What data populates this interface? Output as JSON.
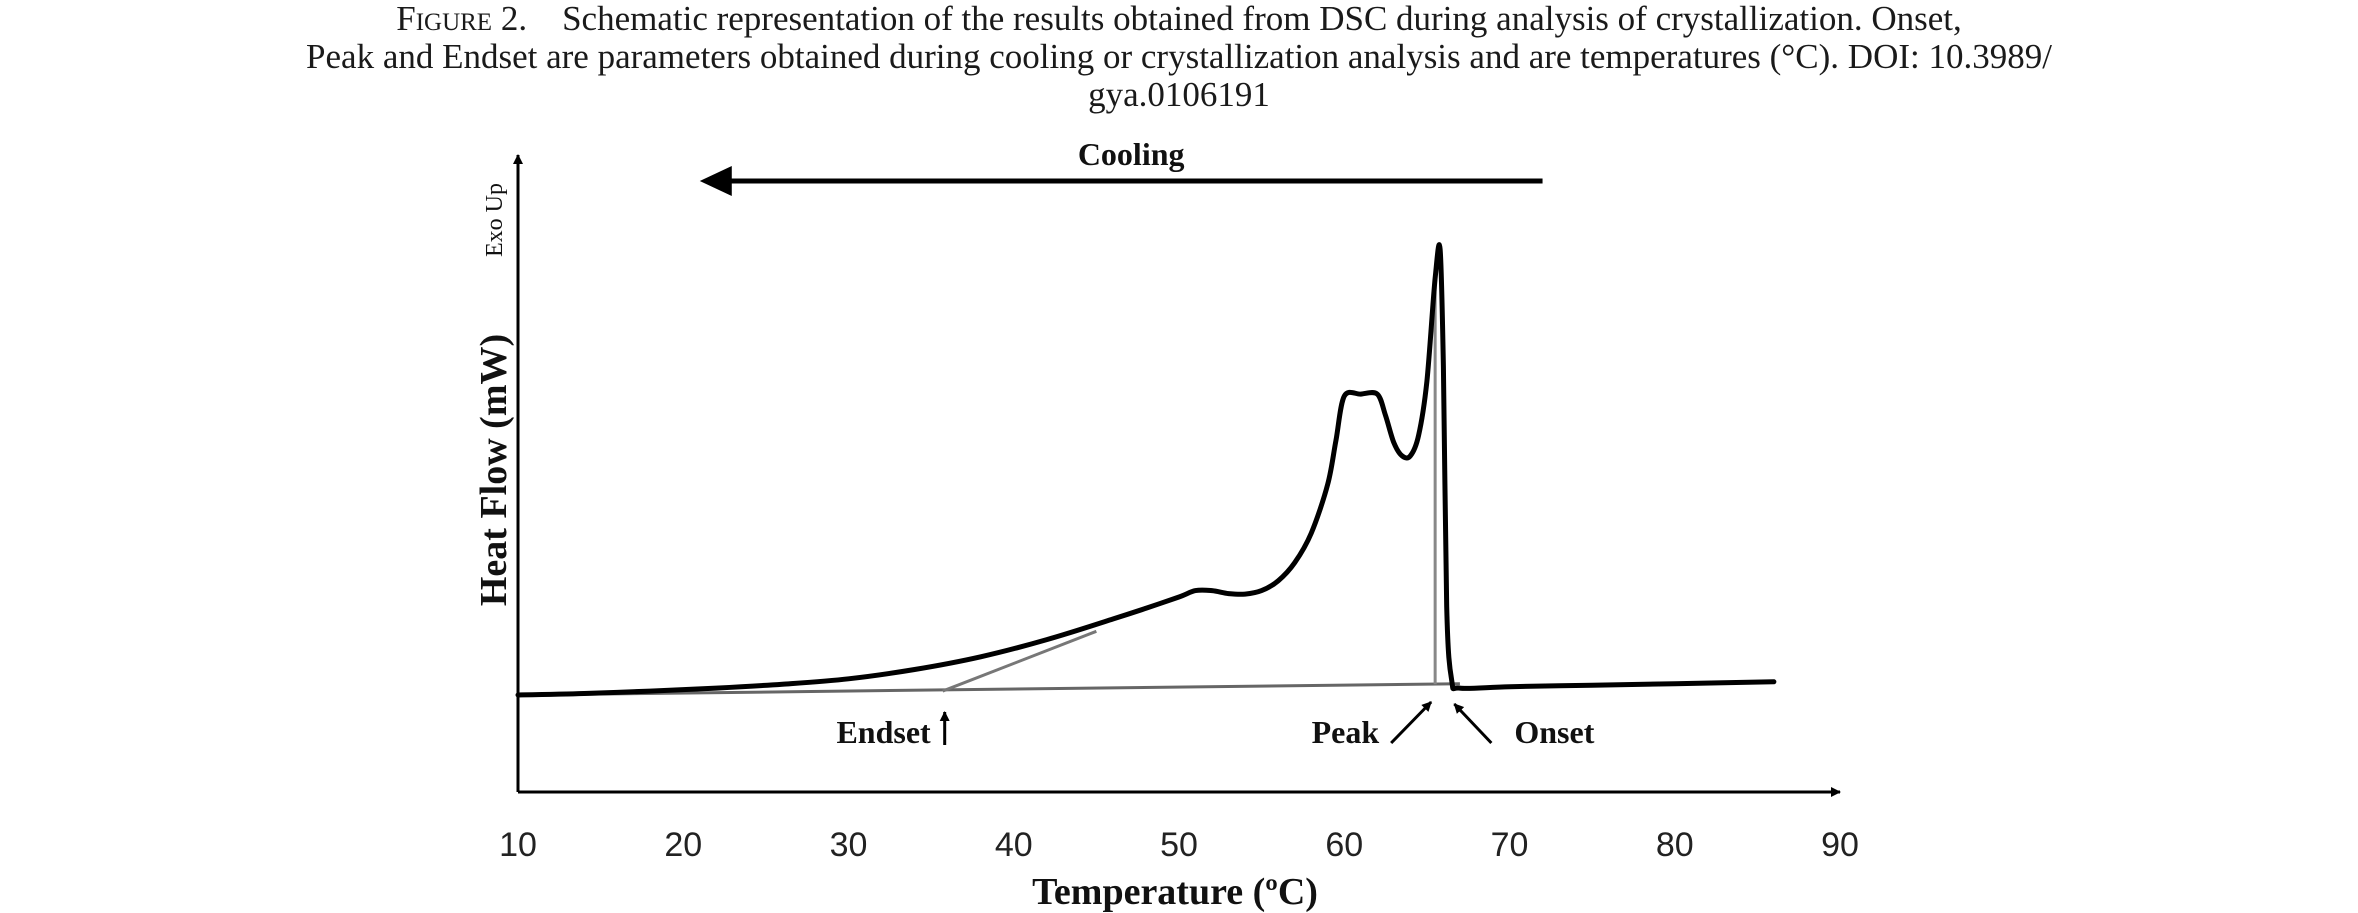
{
  "caption": {
    "figure_label": "Figure 2.",
    "text_line1": "Schematic representation of the results obtained from DSC during analysis of crystallization. Onset,",
    "text_line2": "Peak and Endset are parameters obtained during cooling or crystallization analysis and are temperatures (°C). DOI: 10.3989/",
    "text_line3": "gya.0106191"
  },
  "chart_data": {
    "type": "line",
    "title": "",
    "xlabel": "Temperature (ºC)",
    "ylabel": "Heat Flow (mW)",
    "y_direction_label": "Exo Up",
    "xlim": [
      10,
      90
    ],
    "x_ticks": [
      10,
      20,
      30,
      40,
      50,
      60,
      70,
      80,
      90
    ],
    "ylim": [
      0,
      100
    ],
    "y_ticks_shown": false,
    "grid": false,
    "legend": "none",
    "series": [
      {
        "x": [
          10,
          14,
          18,
          22,
          26,
          30,
          34,
          38,
          42,
          46,
          48,
          50,
          51,
          52,
          53,
          54,
          55,
          56,
          57,
          58,
          59,
          59.5,
          60,
          61,
          62,
          62.5,
          63,
          63.5,
          64,
          64.5,
          65,
          65.5,
          65.8,
          66,
          66.2,
          66.5,
          67,
          70,
          75,
          80,
          86
        ],
        "y": [
          0,
          0.3,
          0.8,
          1.4,
          2.2,
          3.3,
          5.2,
          7.8,
          11.3,
          15.5,
          17.7,
          20.0,
          21.3,
          21.3,
          20.7,
          20.6,
          21.3,
          23.3,
          27.0,
          33.0,
          43.0,
          52.0,
          61.0,
          61.4,
          61.4,
          57.0,
          51.5,
          48.8,
          48.8,
          53.0,
          64.0,
          85.0,
          91.0,
          67.0,
          18.0,
          3.0,
          1.4,
          1.7,
          2.0,
          2.3,
          2.7
        ]
      }
    ],
    "baseline": {
      "x": [
        10,
        67
      ],
      "y": [
        0,
        2.3
      ]
    },
    "endset_tangent": {
      "x": [
        35.7,
        45
      ],
      "y": [
        0.8,
        13
      ]
    },
    "peak_marker_x": 65.5,
    "annotations": [
      {
        "text": "Endset",
        "x": 35.7
      },
      {
        "text": "Peak",
        "x": 65.5
      },
      {
        "text": "Onset",
        "x": 66.3
      },
      {
        "text": "Cooling",
        "arrow_from": 72,
        "arrow_to": 21
      }
    ]
  }
}
